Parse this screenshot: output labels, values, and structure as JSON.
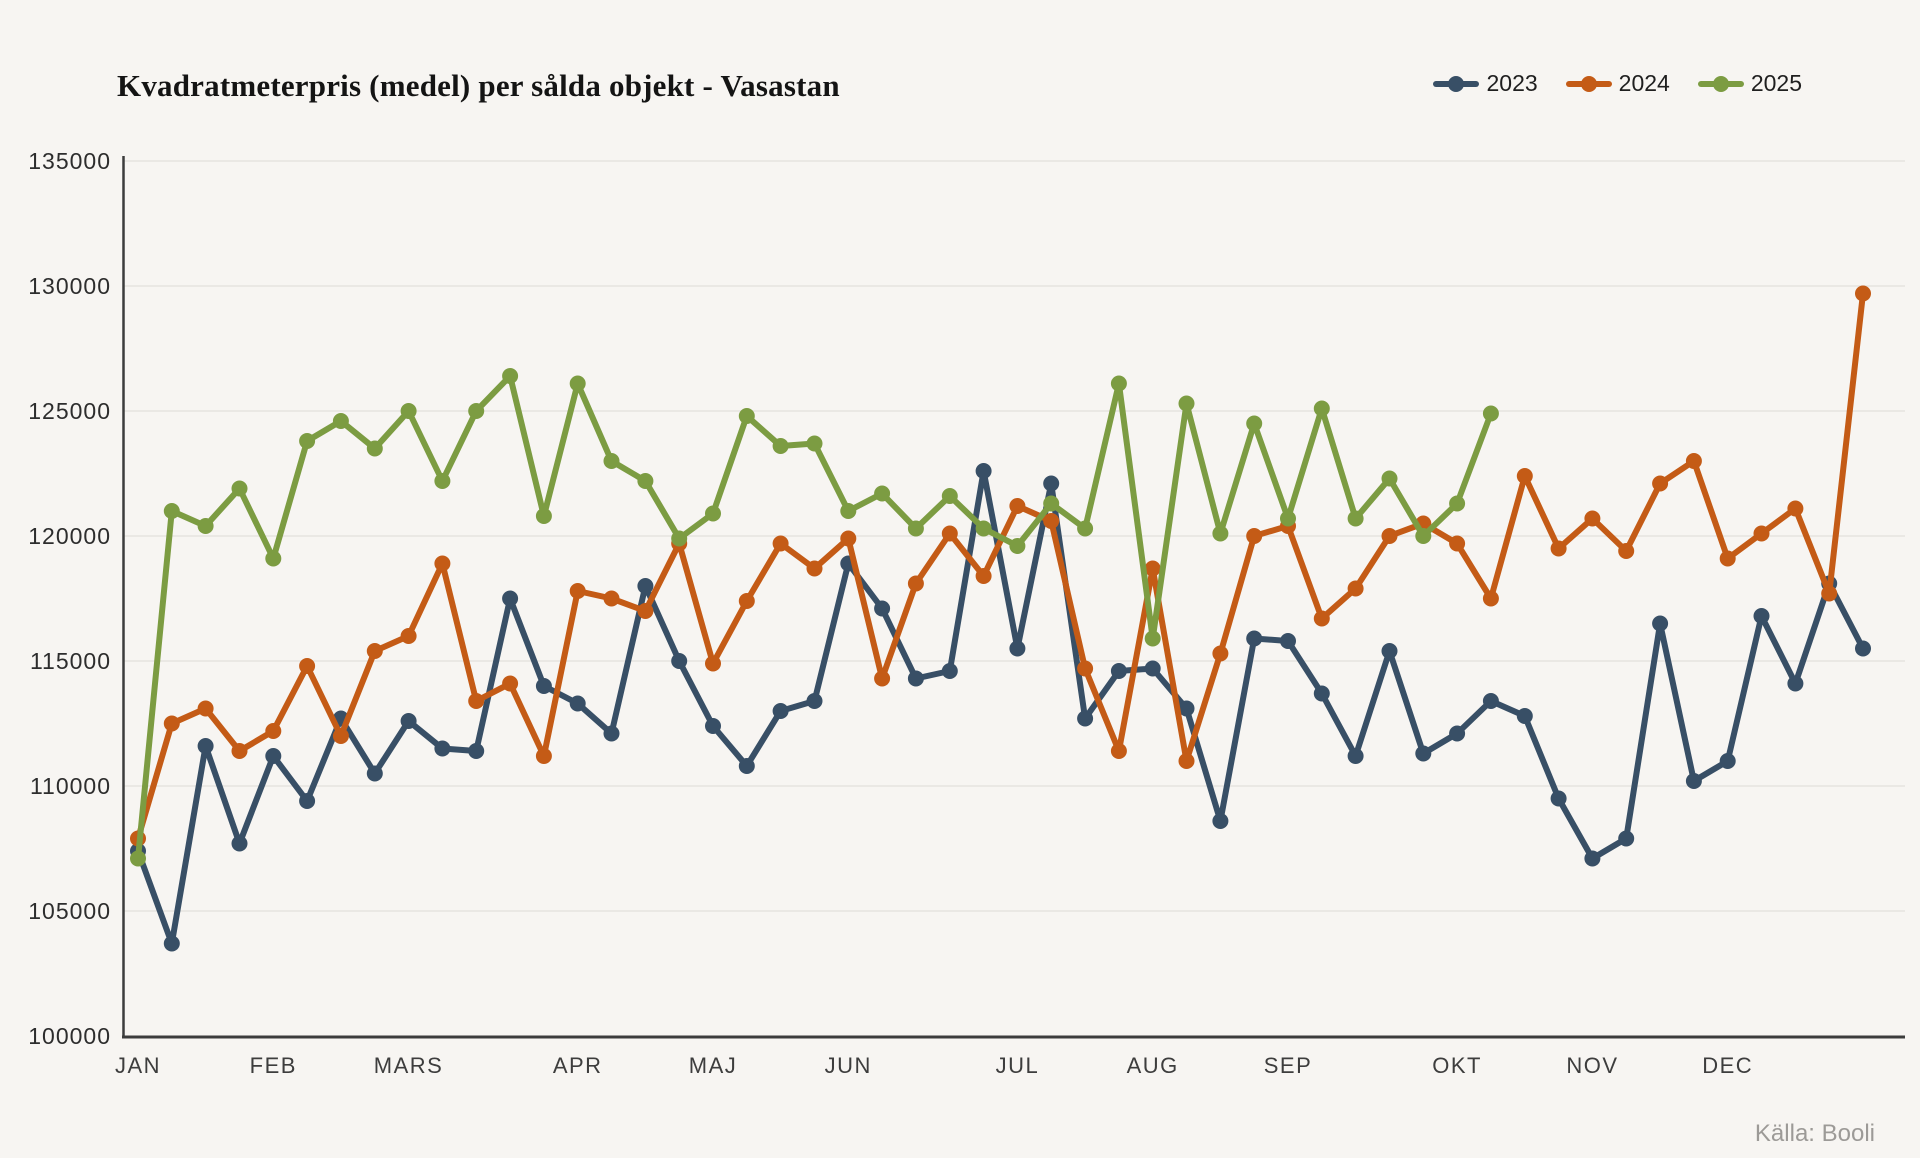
{
  "page": {
    "title": "Kvadratmeterpris (medel) per sålda objekt - Vasastan",
    "source": "Källa: Booli",
    "colors": {
      "background": "#F7F5F2",
      "gridline": "#E5E3DF",
      "axis": "#3C3C3C",
      "tick_label": "#2D2D2D",
      "month_label": "#3D3D3D",
      "title": "#141414",
      "source": "#9C9A97"
    }
  },
  "chart_data": {
    "type": "line",
    "title": "Kvadratmeterpris (medel) per sålda objekt - Vasastan",
    "xlabel": "",
    "ylabel": "",
    "x_unit": "week-of-year",
    "weeks_per_year": 52,
    "ylim": [
      100000,
      135000
    ],
    "ytick_step": 5000,
    "yticks": [
      100000,
      105000,
      110000,
      115000,
      120000,
      125000,
      130000,
      135000
    ],
    "grid": true,
    "legend_position": "top-right",
    "months": [
      {
        "label": "JAN",
        "week": 1
      },
      {
        "label": "FEB",
        "week": 5
      },
      {
        "label": "MARS",
        "week": 9
      },
      {
        "label": "APR",
        "week": 14
      },
      {
        "label": "MAJ",
        "week": 18
      },
      {
        "label": "JUN",
        "week": 22
      },
      {
        "label": "JUL",
        "week": 27
      },
      {
        "label": "AUG",
        "week": 31
      },
      {
        "label": "SEP",
        "week": 35
      },
      {
        "label": "OKT",
        "week": 40
      },
      {
        "label": "NOV",
        "week": 44
      },
      {
        "label": "DEC",
        "week": 48
      }
    ],
    "series": [
      {
        "name": "2023",
        "color": "#384F66",
        "values": [
          107400,
          103700,
          111600,
          107700,
          111200,
          109400,
          112700,
          110500,
          112600,
          111500,
          111400,
          117500,
          114000,
          113300,
          112100,
          118000,
          115000,
          112400,
          110800,
          113000,
          113400,
          118900,
          117100,
          114300,
          114600,
          122600,
          115500,
          122100,
          112700,
          114600,
          114700,
          113100,
          108600,
          115900,
          115800,
          113700,
          111200,
          115400,
          111300,
          112100,
          113400,
          112800,
          109500,
          107100,
          107900,
          116500,
          110200,
          111000,
          116800,
          114100,
          118100,
          115500
        ]
      },
      {
        "name": "2024",
        "color": "#C45B16",
        "values": [
          107900,
          112500,
          113100,
          111400,
          112200,
          114800,
          112000,
          115400,
          116000,
          118900,
          113400,
          114100,
          111200,
          117800,
          117500,
          117000,
          119700,
          114900,
          117400,
          119700,
          118700,
          119900,
          114300,
          118100,
          120100,
          118400,
          121200,
          120600,
          114700,
          111400,
          118700,
          111000,
          115300,
          120000,
          120400,
          116700,
          117900,
          120000,
          120500,
          119700,
          117500,
          122400,
          119500,
          120700,
          119400,
          122100,
          123000,
          119100,
          120100,
          121100,
          117700,
          129700
        ]
      },
      {
        "name": "2025",
        "color": "#7C9C42",
        "values": [
          107100,
          121000,
          120400,
          121900,
          119100,
          123800,
          124600,
          123500,
          125000,
          122200,
          125000,
          126400,
          120800,
          126100,
          123000,
          122200,
          119900,
          120900,
          124800,
          123600,
          123700,
          121000,
          121700,
          120300,
          121600,
          120300,
          119600,
          121300,
          120300,
          126100,
          115900,
          125300,
          120100,
          124500,
          120700,
          125100,
          120700,
          122300,
          120000,
          121300,
          124900
        ]
      }
    ]
  }
}
